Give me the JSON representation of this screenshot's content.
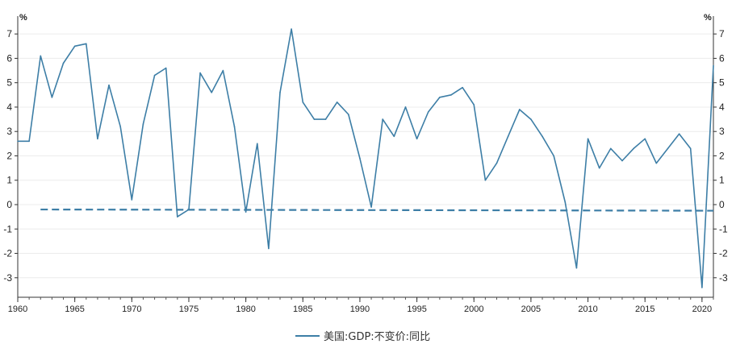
{
  "chart_data": {
    "type": "line",
    "y_unit_left": "%",
    "y_unit_right": "%",
    "ylim": [
      -3.8,
      7.6
    ],
    "y_ticks": [
      -3,
      -2,
      -1,
      0,
      1,
      2,
      3,
      4,
      5,
      6,
      7
    ],
    "xlim": [
      1960,
      2021
    ],
    "x_ticks": [
      1960,
      1965,
      1970,
      1975,
      1980,
      1985,
      1990,
      1995,
      2000,
      2005,
      2010,
      2015,
      2020
    ],
    "grid": true,
    "legend_position": "bottom-center",
    "series": [
      {
        "name": "美国:GDP:不变价:同比",
        "color": "#3d7ea6",
        "x": [
          1960,
          1961,
          1962,
          1963,
          1964,
          1965,
          1966,
          1967,
          1968,
          1969,
          1970,
          1971,
          1972,
          1973,
          1974,
          1975,
          1976,
          1977,
          1978,
          1979,
          1980,
          1981,
          1982,
          1983,
          1984,
          1985,
          1986,
          1987,
          1988,
          1989,
          1990,
          1991,
          1992,
          1993,
          1994,
          1995,
          1996,
          1997,
          1998,
          1999,
          2000,
          2001,
          2002,
          2003,
          2004,
          2005,
          2006,
          2007,
          2008,
          2009,
          2010,
          2011,
          2012,
          2013,
          2014,
          2015,
          2016,
          2017,
          2018,
          2019,
          2020,
          2021
        ],
        "values": [
          2.6,
          2.6,
          6.1,
          4.4,
          5.8,
          6.5,
          6.6,
          2.7,
          4.9,
          3.2,
          0.2,
          3.3,
          5.3,
          5.6,
          -0.5,
          -0.2,
          5.4,
          4.6,
          5.5,
          3.2,
          -0.3,
          2.5,
          -1.8,
          4.6,
          7.2,
          4.2,
          3.5,
          3.5,
          4.2,
          3.7,
          1.9,
          -0.1,
          3.5,
          2.8,
          4.0,
          2.7,
          3.8,
          4.4,
          4.5,
          4.8,
          4.1,
          1.0,
          1.7,
          2.8,
          3.9,
          3.5,
          2.8,
          2.0,
          0.1,
          -2.6,
          2.7,
          1.5,
          2.3,
          1.8,
          2.3,
          2.7,
          1.7,
          2.3,
          2.9,
          2.3,
          -3.4,
          5.7
        ]
      }
    ],
    "trend_line": {
      "color": "#3d7ea6",
      "style": "dashed",
      "x": [
        1962,
        2021
      ],
      "values": [
        -0.2,
        -0.25
      ]
    }
  }
}
